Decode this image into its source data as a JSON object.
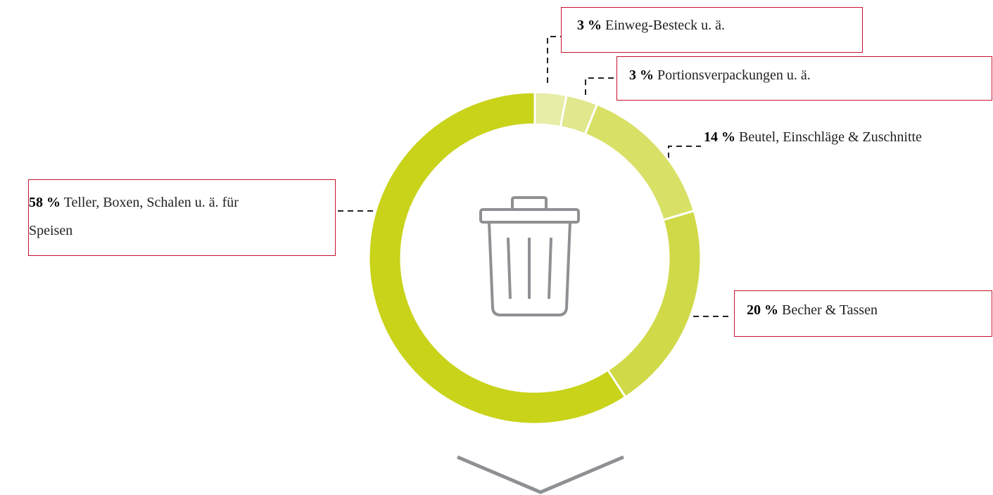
{
  "chart_data": {
    "type": "donut",
    "categories": [
      "Einweg-Besteck u. ä.",
      "Portionsverpackungen u. ä.",
      "Beutel, Einschläge & Zuschnitte",
      "Becher & Tassen",
      "Teller, Boxen, Schalen u. ä. für Speisen"
    ],
    "values": [
      3,
      3,
      14,
      20,
      58
    ],
    "value_labels": [
      "3 %",
      "3 %",
      "14 %",
      "20 %",
      "58 %"
    ],
    "colors": [
      "#e7eca6",
      "#e0e78c",
      "#d8e166",
      "#d0da48",
      "#c8d31a"
    ]
  }
}
